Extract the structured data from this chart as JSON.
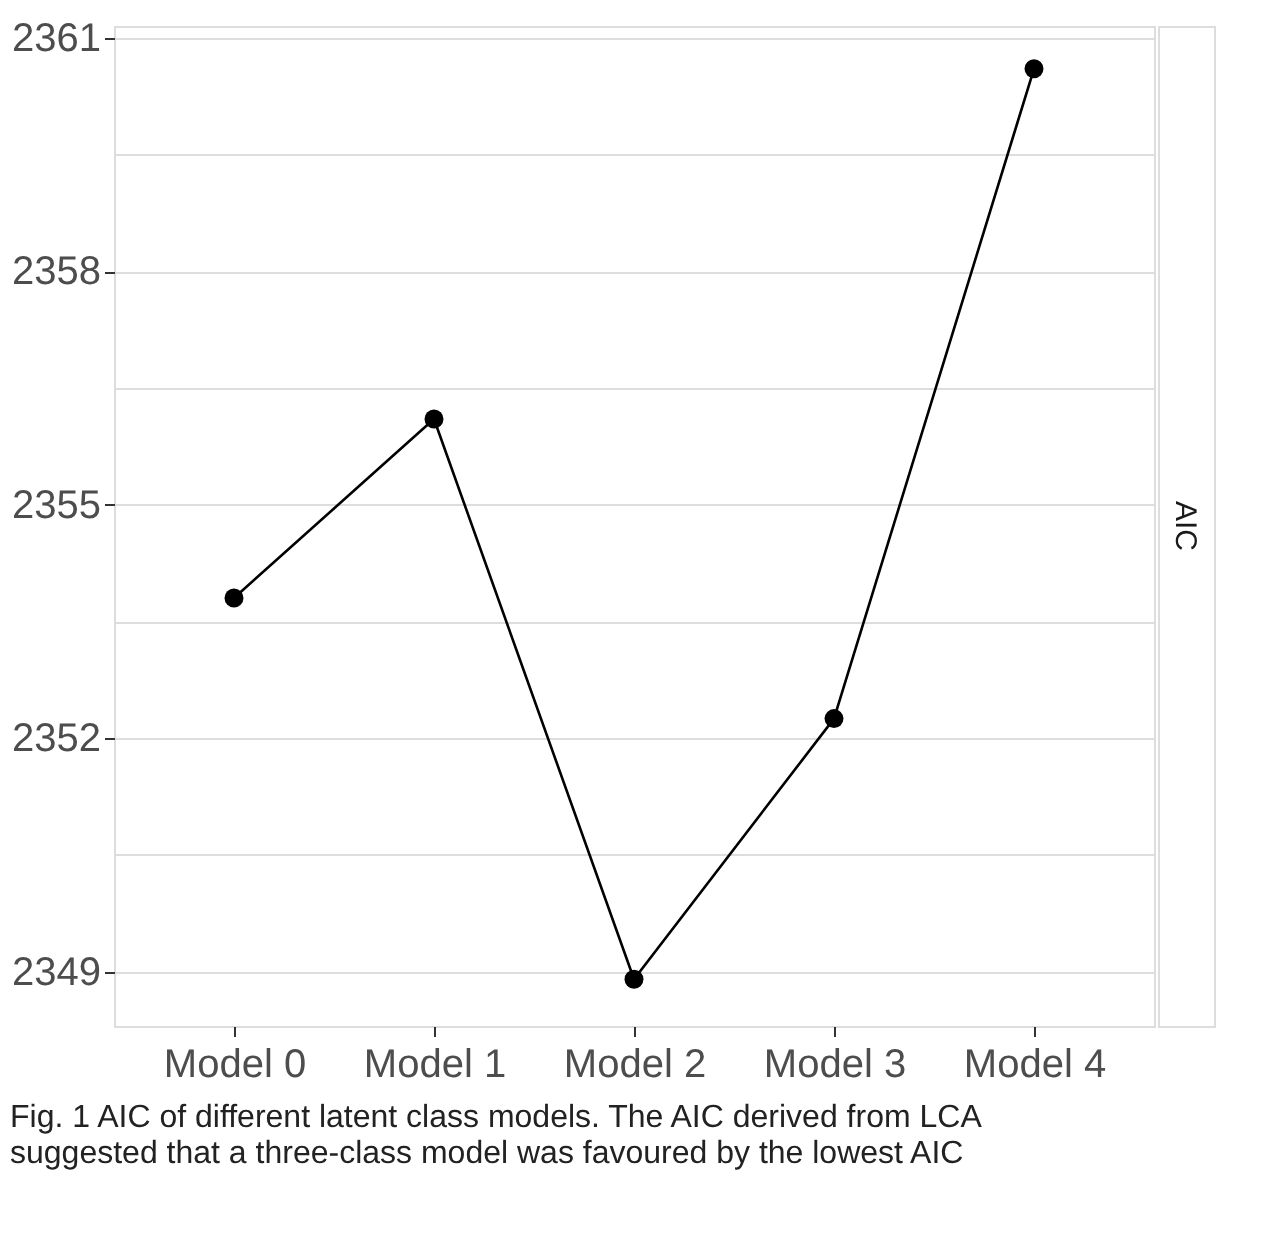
{
  "chart_data": {
    "type": "line",
    "categories": [
      "Model 0",
      "Model 1",
      "Model 2",
      "Model 3",
      "Model 4"
    ],
    "values": [
      2353.8,
      2356.1,
      2348.9,
      2352.25,
      2360.6
    ],
    "color": "#000000",
    "marker": "circle",
    "line_style": "solid",
    "ylim": [
      2348.3,
      2361.15
    ],
    "yticks": [
      2349,
      {
        "value": 2350.5,
        "label": null
      },
      2352,
      {
        "value": 2353.5,
        "label": null
      },
      2355,
      {
        "value": 2356.5,
        "label": null
      },
      2358,
      {
        "value": 2359.5,
        "label": null
      },
      2361
    ],
    "grid": "y",
    "annotations": [
      "AIC",
      "Fig. 1 AIC of different latent class models. The AIC derived from LCA suggested that a three-class model was favoured by the lowest AIC"
    ]
  }
}
